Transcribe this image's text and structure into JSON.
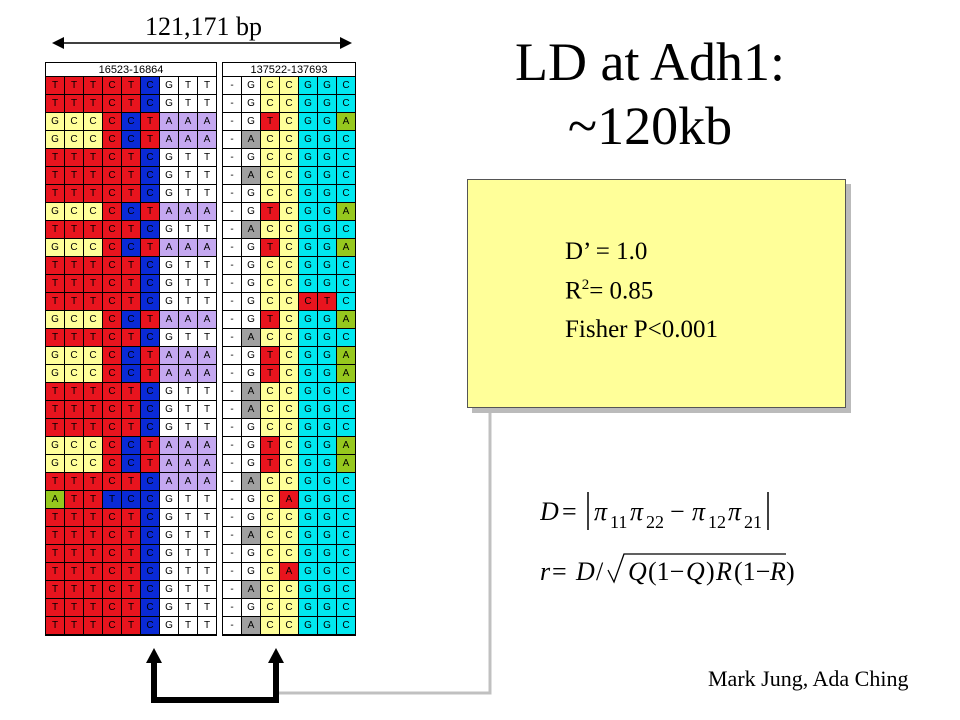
{
  "span_label": "121,171 bp",
  "title_line1": "LD at Adh1:",
  "title_line2": "~120kb",
  "stats": {
    "dprime": "D’ = 1.0",
    "r2_prefix": "R",
    "r2_sup": "2",
    "r2_suffix": "= 0.85",
    "fisher": "Fisher P<0.001"
  },
  "credit": "Mark Jung, Ada Ching",
  "block_left": {
    "header": "16523-16864",
    "rows": [
      "TTTCTCGTT",
      "TTTCTCGTT",
      "GCCCCTAAA",
      "GCCCCTAAA",
      "TTTCTCGTT",
      "TTTCTCGTT",
      "TTTCTCGTT",
      "GCCCCTAAA",
      "TTTCTCGTT",
      "GCCCCTAAA",
      "TTTCTCGTT",
      "TTTCTCGTT",
      "TTTCTCGTT",
      "GCCCCTAAA",
      "TTTCTCGTT",
      "GCCCCTAAA",
      "GCCCCTAAA",
      "TTTCTCGTT",
      "TTTCTCGTT",
      "TTTCTCGTT",
      "GCCCCTAAA",
      "GCCCCTAAA",
      "TTTCTCAAA",
      "ATTTCCGTT",
      "TTTCTCGTT",
      "TTTCTCGTT",
      "TTTCTCGTT",
      "TTTCTCGTT",
      "TTTCTCGTT",
      "TTTCTCGTT",
      "TTTCTCGTT"
    ]
  },
  "block_right": {
    "header": "137522-137693",
    "rows": [
      "-GCCGGC",
      "-GCCGGC",
      "-GTCGGA",
      "-ACCGGC",
      "-GCCGGC",
      "-ACCGGC",
      "-GCCGGC",
      "-GTCGGA",
      "-ACCGGC",
      "-GTCGGA",
      "-GCCGGC",
      "-GCCGGC",
      "-GCCCTC",
      "-GTCGGA",
      "-ACCGGC",
      "-GTCGGA",
      "-GTCGGA",
      "-ACCGGC",
      "-ACCGGC",
      "-GCCGGC",
      "-GTCGGA",
      "-GTCGGA",
      "-ACCGGC",
      "-GCAGGC",
      "-GCCGGC",
      "-ACCGGC",
      "-GCCGGC",
      "-GCAGGC",
      "-ACCGGC",
      "-GCCGGC",
      "-ACCGGC"
    ]
  },
  "colors": {
    "red": "#e8141e",
    "blue": "#0a2ad6",
    "yellow": "#ffff99",
    "purple": "#c4a8f0",
    "green": "#96c81e",
    "cyan": "#00e8f0",
    "gray": "#a0a0a0",
    "white": "#ffffff",
    "box_fill": "#ffff99"
  }
}
